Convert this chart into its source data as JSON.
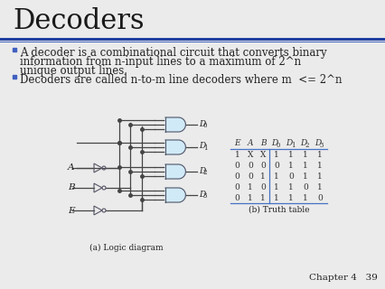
{
  "title": "Decoders",
  "title_fontsize": 22,
  "title_color": "#1a1a1a",
  "bg_color": "#ebebeb",
  "header_line_color1": "#2040a0",
  "header_line_color2": "#4060c0",
  "bullet_color": "#4060c0",
  "bullet1_line1": "A decoder is a combinational circuit that converts binary",
  "bullet1_line2": "information from n-input lines to a maximum of 2^n",
  "bullet1_line3": "unique output lines.",
  "bullet2": "Decoders are called n-to-m line decoders where m  <= 2^n",
  "body_fontsize": 8.5,
  "caption_a": "(a) Logic diagram",
  "caption_b": "(b) Truth table",
  "footer": "Chapter 4   39",
  "gate_fill": "#d0eaf8",
  "gate_edge": "#555566",
  "wire_color": "#444444",
  "table_headers": [
    "E",
    "A",
    "B",
    "D0",
    "D1",
    "D2",
    "D3"
  ],
  "table_rows": [
    [
      "1",
      "X",
      "X",
      "1",
      "1",
      "1",
      "1"
    ],
    [
      "0",
      "0",
      "0",
      "0",
      "1",
      "1",
      "1"
    ],
    [
      "0",
      "0",
      "1",
      "1",
      "0",
      "1",
      "1"
    ],
    [
      "0",
      "1",
      "0",
      "1",
      "1",
      "0",
      "1"
    ],
    [
      "0",
      "1",
      "1",
      "1",
      "1",
      "1",
      "0"
    ]
  ],
  "table_line_color": "#4472c4",
  "table_text_color": "#333333",
  "text_color": "#222222",
  "out_labels": [
    "D0",
    "D1",
    "D2",
    "D3"
  ]
}
